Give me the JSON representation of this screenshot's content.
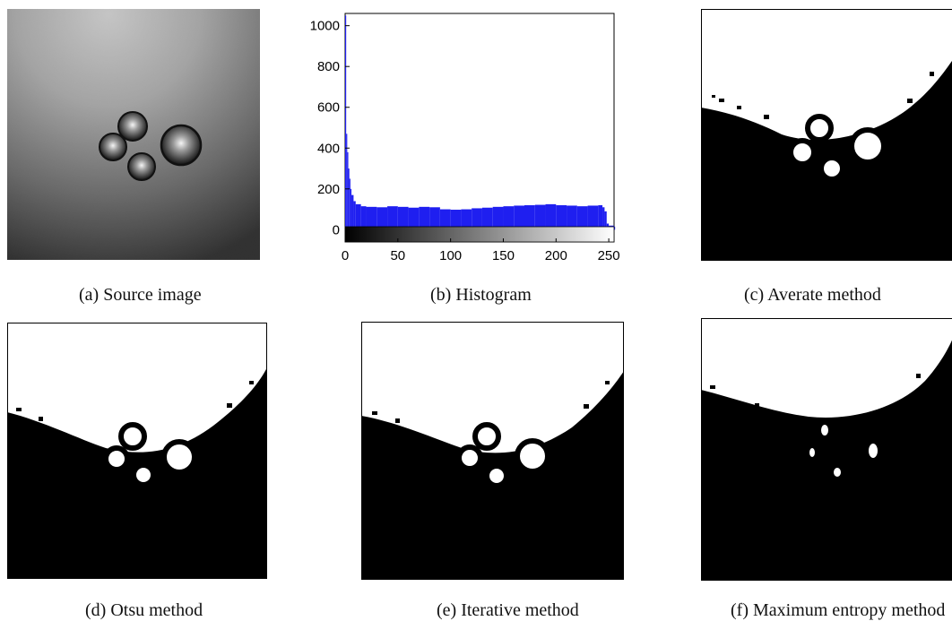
{
  "figure": {
    "panels": [
      {
        "id": "a",
        "caption": "(a) Source image"
      },
      {
        "id": "b",
        "caption": "(b) Histogram"
      },
      {
        "id": "c",
        "caption": "(c) Averate method"
      },
      {
        "id": "d",
        "caption": "(d) Otsu method"
      },
      {
        "id": "e",
        "caption": "(e) Iterative method"
      },
      {
        "id": "f",
        "caption": "(f) Maximum entropy method"
      }
    ]
  },
  "colors": {
    "bars": "#1f1ff0",
    "foreground": "#000000",
    "background": "#ffffff"
  },
  "chart_data": {
    "type": "bar",
    "title": "",
    "xlabel": "",
    "ylabel": "",
    "xlim": [
      0,
      255
    ],
    "ylim": [
      -60,
      1060
    ],
    "xticks": [
      0,
      50,
      100,
      150,
      200,
      250
    ],
    "yticks": [
      0,
      200,
      400,
      600,
      800,
      1000
    ],
    "colorbar": "grayscale 0-255 below the bars",
    "x": [
      0,
      1,
      2,
      3,
      4,
      5,
      6,
      8,
      10,
      15,
      20,
      30,
      40,
      50,
      60,
      70,
      80,
      90,
      100,
      110,
      120,
      130,
      140,
      150,
      160,
      170,
      180,
      190,
      200,
      210,
      220,
      230,
      240,
      244,
      246,
      248,
      250,
      255
    ],
    "values": [
      1050,
      470,
      380,
      300,
      250,
      200,
      170,
      140,
      125,
      115,
      112,
      110,
      115,
      112,
      108,
      112,
      110,
      100,
      98,
      100,
      105,
      108,
      112,
      115,
      118,
      120,
      122,
      125,
      120,
      118,
      115,
      118,
      120,
      110,
      90,
      30,
      20,
      15
    ]
  }
}
